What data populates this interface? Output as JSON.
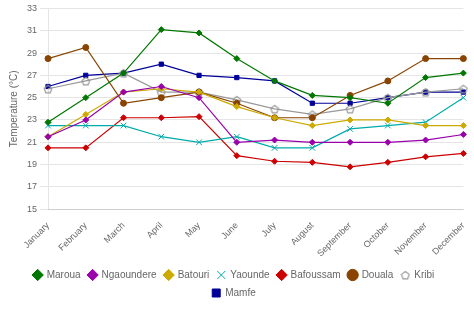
{
  "chart_data": {
    "type": "line",
    "ylabel": "Temperature (°C)",
    "categories": [
      "January",
      "February",
      "March",
      "April",
      "May",
      "June",
      "July",
      "August",
      "September",
      "October",
      "November",
      "December"
    ],
    "series": [
      {
        "name": "Maroua",
        "color": "#007700",
        "marker": "diamond",
        "values": [
          22.8,
          25.0,
          27.2,
          31.1,
          30.8,
          28.5,
          26.5,
          25.2,
          25.0,
          24.5,
          26.8,
          27.2
        ]
      },
      {
        "name": "Ngaoundere",
        "color": "#9900AA",
        "marker": "diamond",
        "values": [
          21.5,
          23.0,
          25.5,
          26.0,
          25.0,
          21.0,
          21.2,
          21.0,
          21.0,
          21.0,
          21.2,
          21.7
        ]
      },
      {
        "name": "Batouri",
        "color": "#CCAA00",
        "marker": "diamond",
        "values": [
          21.5,
          23.5,
          25.5,
          25.8,
          25.5,
          24.2,
          23.2,
          22.5,
          23.0,
          23.0,
          22.5,
          22.5
        ]
      },
      {
        "name": "Yaounde",
        "color": "#00AAAA",
        "marker": "x",
        "values": [
          22.5,
          22.5,
          22.5,
          21.5,
          21.0,
          21.5,
          20.5,
          20.5,
          22.2,
          22.5,
          22.8,
          25.0
        ]
      },
      {
        "name": "Bafoussam",
        "color": "#CC0000",
        "marker": "diamond",
        "values": [
          20.5,
          20.5,
          23.2,
          23.2,
          23.3,
          19.8,
          19.3,
          19.2,
          18.8,
          19.2,
          19.7,
          20.0
        ]
      },
      {
        "name": "Douala",
        "color": "#884400",
        "marker": "circle",
        "values": [
          28.5,
          29.5,
          24.5,
          25.0,
          25.5,
          24.5,
          23.2,
          23.2,
          25.2,
          26.5,
          28.5,
          28.5
        ]
      },
      {
        "name": "Kribi",
        "color": "#999999",
        "marker": "pentagon",
        "values": [
          25.8,
          26.5,
          27.2,
          25.5,
          25.5,
          24.8,
          24.0,
          23.5,
          24.0,
          25.0,
          25.5,
          25.8
        ]
      },
      {
        "name": "Mamfe",
        "color": "#000099",
        "marker": "square",
        "values": [
          26.0,
          27.0,
          27.2,
          28.0,
          27.0,
          26.8,
          26.5,
          24.5,
          24.5,
          25.0,
          25.5,
          25.5
        ]
      }
    ],
    "ylim": [
      15,
      33
    ],
    "yticks": [
      15,
      17,
      19,
      21,
      23,
      25,
      27,
      29,
      31,
      33
    ],
    "grid": true,
    "legend": "bottom"
  }
}
